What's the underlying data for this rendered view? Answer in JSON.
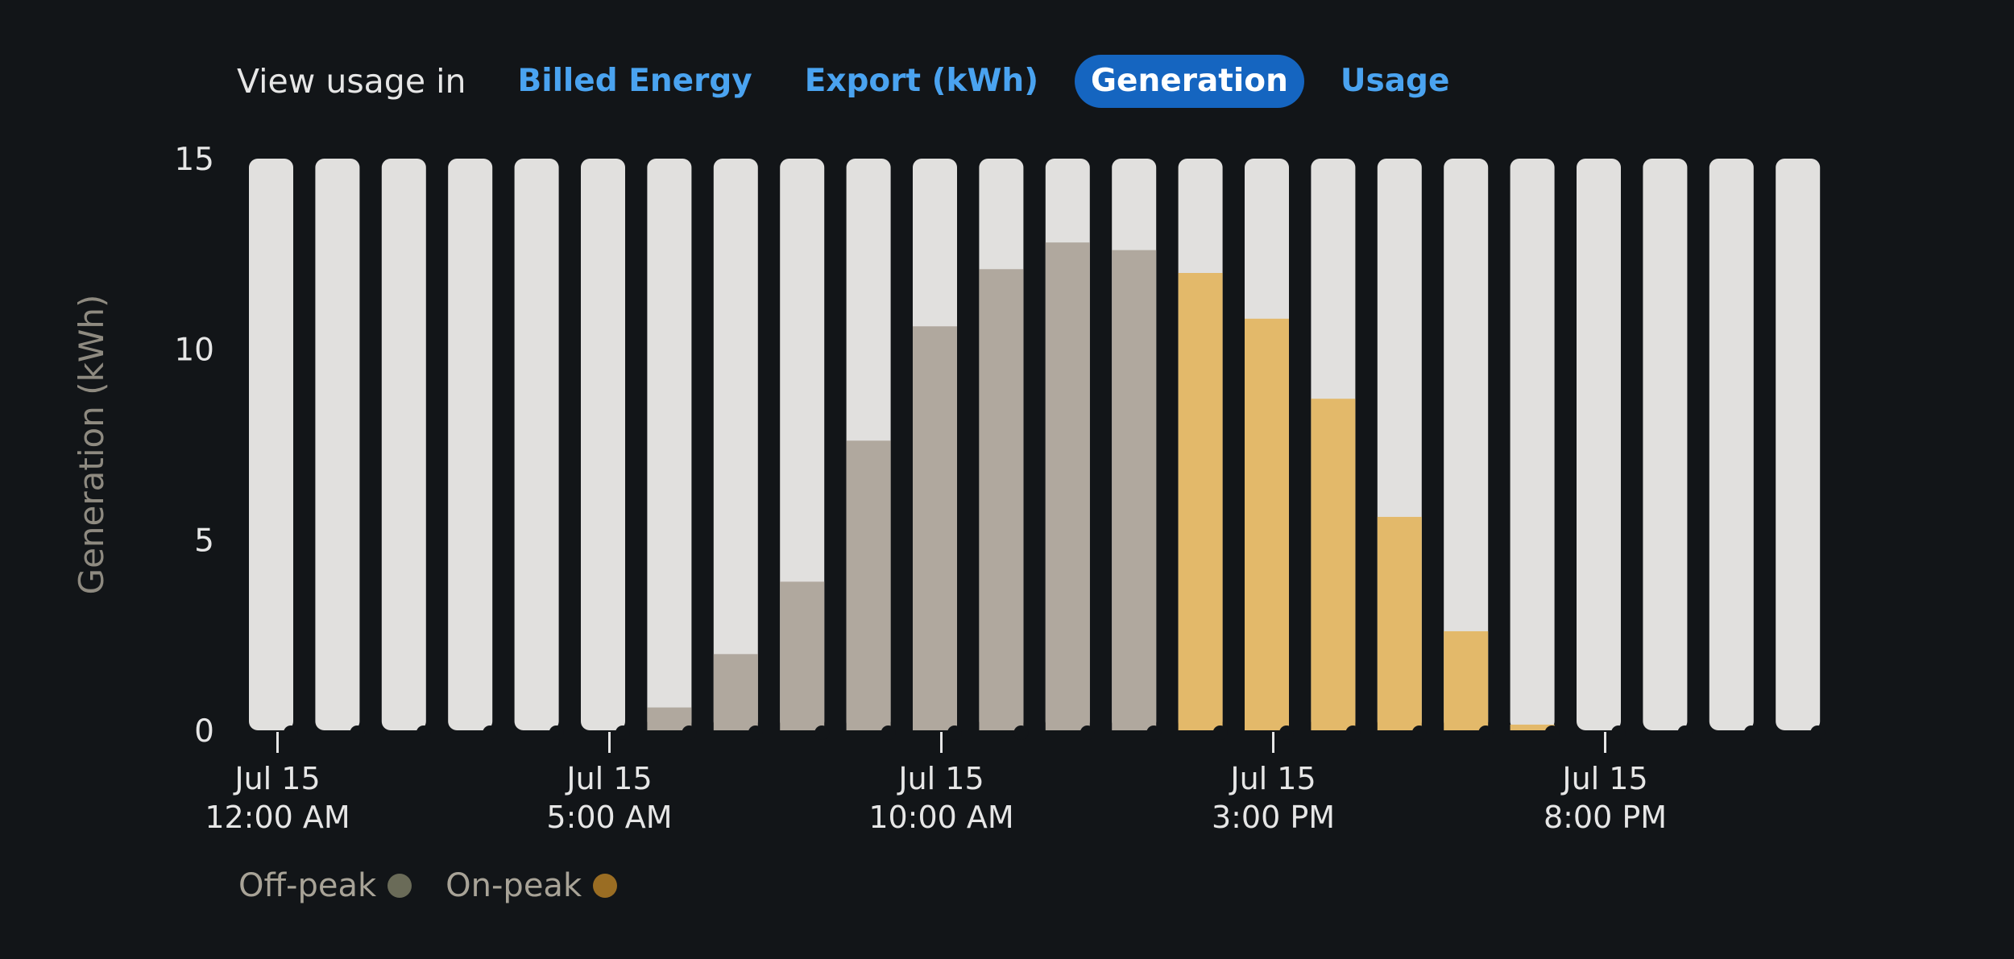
{
  "header": {
    "prefix": "View usage in",
    "tabs": [
      {
        "label": "Billed Energy",
        "active": false
      },
      {
        "label": "Export (kWh)",
        "active": false
      },
      {
        "label": "Generation",
        "active": true
      },
      {
        "label": "Usage",
        "active": false
      }
    ]
  },
  "chart_data": {
    "type": "bar",
    "ylabel": "Generation (kWh)",
    "ylim": [
      0,
      15
    ],
    "yticks": [
      0,
      5,
      10,
      15
    ],
    "x_ticks": [
      {
        "index": 0,
        "date": "Jul 15",
        "time": "12:00 AM"
      },
      {
        "index": 5,
        "date": "Jul 15",
        "time": "5:00 AM"
      },
      {
        "index": 10,
        "date": "Jul 15",
        "time": "10:00 AM"
      },
      {
        "index": 15,
        "date": "Jul 15",
        "time": "3:00 PM"
      },
      {
        "index": 20,
        "date": "Jul 15",
        "time": "8:00 PM"
      }
    ],
    "series": [
      {
        "name": "Off-peak",
        "values": [
          0,
          0,
          0,
          0,
          0,
          0,
          0.6,
          2.0,
          3.9,
          7.6,
          10.6,
          12.1,
          12.8,
          12.6,
          0,
          0,
          0,
          0,
          0,
          0,
          0,
          0,
          0,
          0
        ]
      },
      {
        "name": "On-peak",
        "values": [
          0,
          0,
          0,
          0,
          0,
          0,
          0,
          0,
          0,
          0,
          0,
          0,
          0,
          0,
          12.0,
          10.8,
          8.7,
          5.6,
          2.6,
          0.15,
          0,
          0,
          0,
          0
        ]
      }
    ],
    "colors": {
      "background_bar": "#e1e0de",
      "off_peak_bar": "#b0a89e",
      "on_peak_bar": "#e3b96a",
      "off_peak_legend": "#6a6b58",
      "on_peak_legend": "#9a6d23"
    },
    "legend": {
      "position": "bottom-left"
    }
  }
}
